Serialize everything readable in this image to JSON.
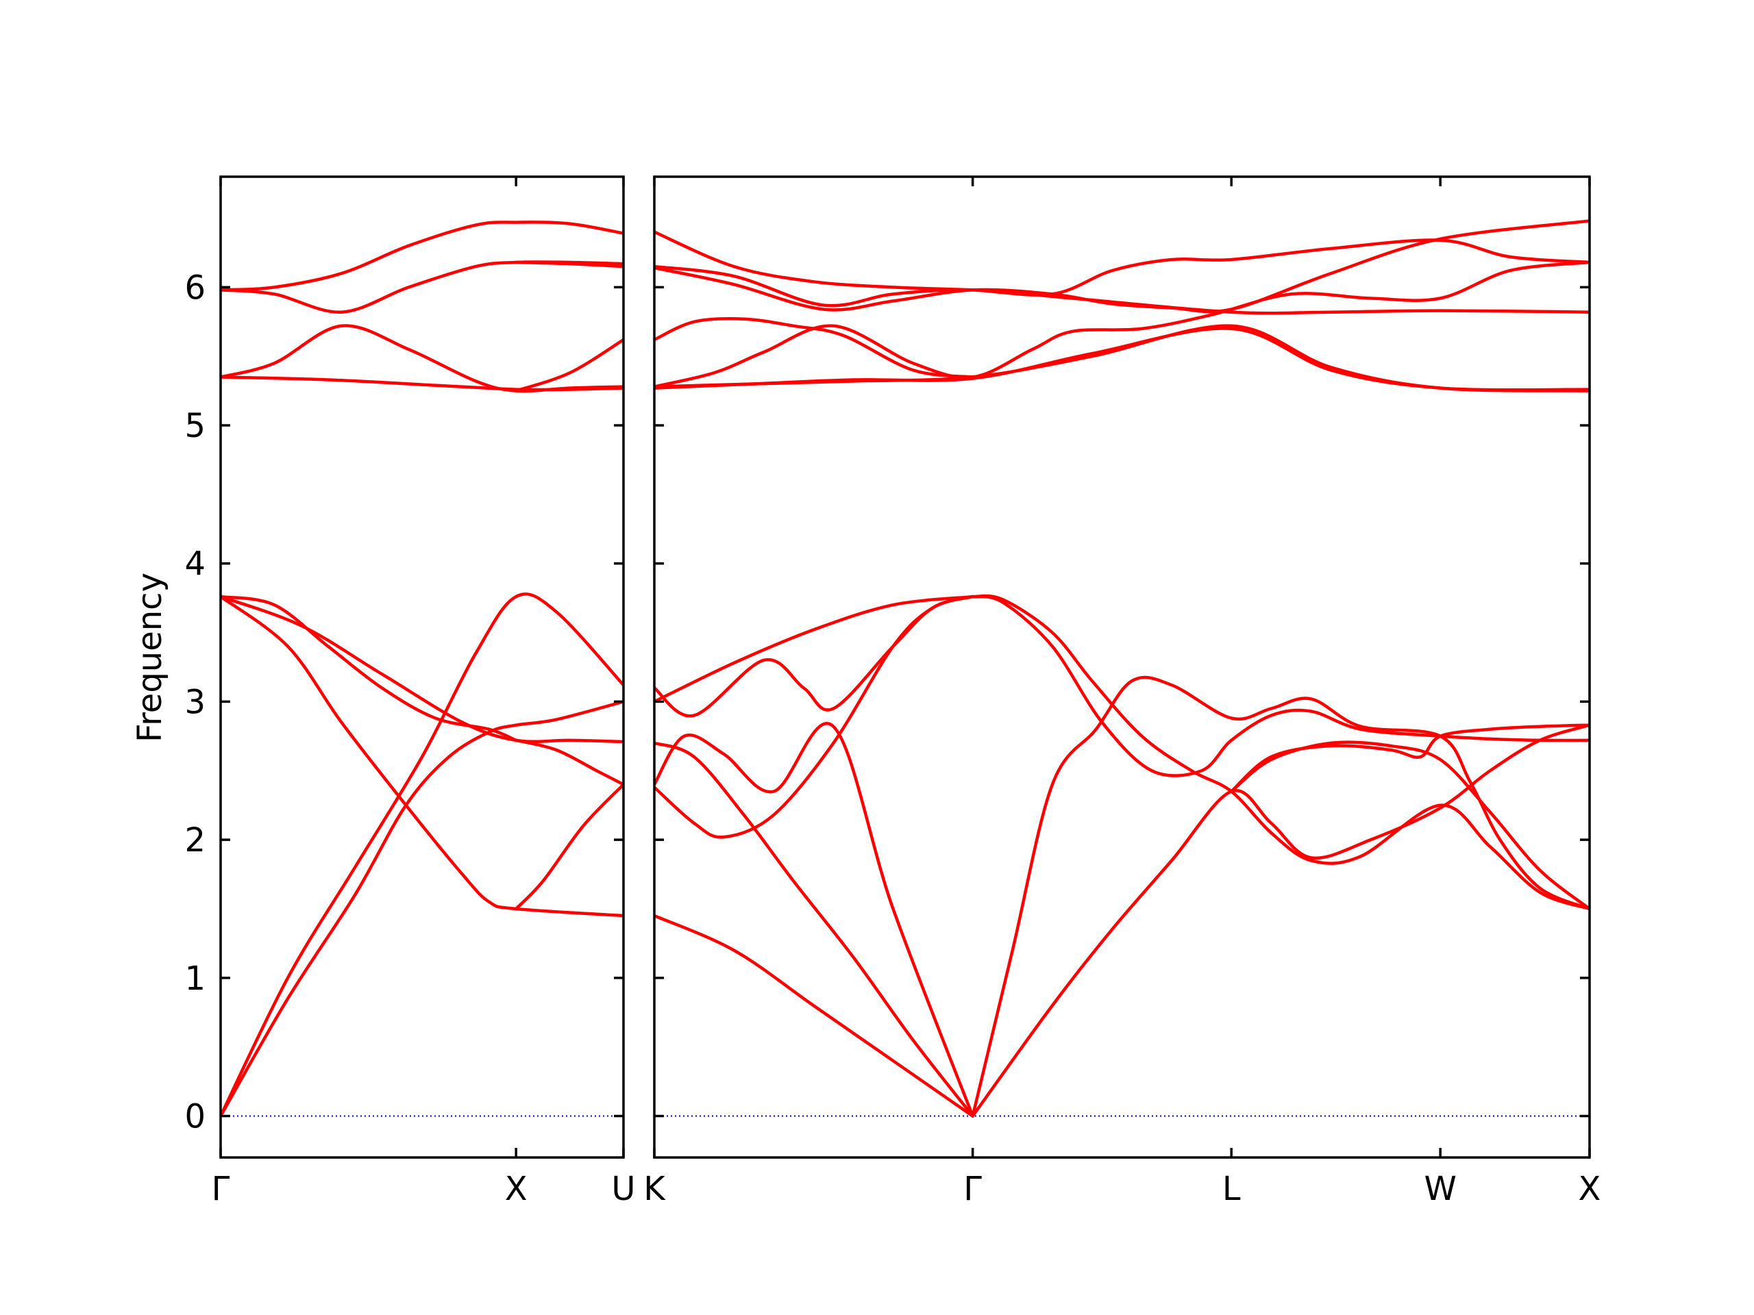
{
  "chart_data": {
    "type": "line",
    "title": "",
    "ylabel": "Frequency",
    "ylim": [
      -0.3,
      6.8
    ],
    "yticks": [
      0,
      1,
      2,
      3,
      4,
      5,
      6
    ],
    "line_color": "#ff0000",
    "zero_line_color": "#0000cc",
    "grid": false,
    "segments": [
      {
        "xlim": [
          0,
          1.5
        ],
        "ticks": [
          {
            "pos": 0,
            "label": "Γ"
          },
          {
            "pos": 1.1,
            "label": "X"
          },
          {
            "pos": 1.5,
            "label": "U"
          }
        ],
        "bands": [
          {
            "x": [
              0,
              0.25,
              0.5,
              0.75,
              0.95,
              1.1,
              1.25,
              1.5
            ],
            "y": [
              0,
              1.0,
              1.8,
              2.6,
              3.35,
              3.76,
              3.65,
              3.12
            ]
          },
          {
            "x": [
              0,
              0.25,
              0.5,
              0.69,
              0.85,
              1.0,
              1.1,
              1.25,
              1.5
            ],
            "y": [
              0,
              0.85,
              1.6,
              2.25,
              2.6,
              2.78,
              2.83,
              2.87,
              3.0
            ]
          },
          {
            "x": [
              0,
              0.25,
              0.45,
              0.69,
              0.9,
              1.0,
              1.1,
              1.5
            ],
            "y": [
              3.76,
              3.4,
              2.85,
              2.25,
              1.75,
              1.55,
              1.5,
              1.45
            ]
          },
          {
            "x": [
              0,
              0.3,
              0.6,
              0.9,
              1.1,
              1.3,
              1.5
            ],
            "y": [
              3.76,
              3.55,
              3.2,
              2.85,
              2.72,
              2.72,
              2.71
            ]
          },
          {
            "x": [
              0,
              0.2,
              0.4,
              0.6,
              0.8,
              1.0,
              1.1
            ],
            "y": [
              3.76,
              3.7,
              3.4,
              3.1,
              2.88,
              2.8,
              2.72
            ]
          },
          {
            "x": [
              1.1,
              1.2,
              1.35,
              1.5
            ],
            "y": [
              1.5,
              1.7,
              2.1,
              2.4
            ]
          },
          {
            "x": [
              1.1,
              1.25,
              1.4,
              1.5
            ],
            "y": [
              2.72,
              2.65,
              2.5,
              2.4
            ]
          },
          {
            "x": [
              0,
              0.4,
              0.8,
              1.1,
              1.3,
              1.5
            ],
            "y": [
              5.35,
              5.33,
              5.29,
              5.26,
              5.26,
              5.27
            ]
          },
          {
            "x": [
              0,
              0.2,
              0.45,
              0.7,
              0.95,
              1.1,
              1.3,
              1.5
            ],
            "y": [
              5.35,
              5.45,
              5.72,
              5.55,
              5.32,
              5.25,
              5.27,
              5.28
            ]
          },
          {
            "x": [
              1.1,
              1.3,
              1.5
            ],
            "y": [
              5.25,
              5.38,
              5.62
            ]
          },
          {
            "x": [
              0,
              0.2,
              0.45,
              0.7,
              0.95,
              1.1,
              1.3,
              1.5
            ],
            "y": [
              5.98,
              5.95,
              5.82,
              6.0,
              6.15,
              6.18,
              6.18,
              6.17
            ]
          },
          {
            "x": [
              0,
              0.2,
              0.45,
              0.7,
              0.95,
              1.1,
              1.3,
              1.5
            ],
            "y": [
              5.98,
              6.0,
              6.1,
              6.3,
              6.45,
              6.47,
              6.46,
              6.39
            ]
          },
          {
            "x": [
              1.1,
              1.3,
              1.5
            ],
            "y": [
              6.18,
              6.17,
              6.15
            ]
          }
        ]
      },
      {
        "xlim": [
          0,
          4.7
        ],
        "ticks": [
          {
            "pos": 0,
            "label": "K"
          },
          {
            "pos": 1.6,
            "label": "Γ"
          },
          {
            "pos": 2.9,
            "label": "L"
          },
          {
            "pos": 3.95,
            "label": "W"
          },
          {
            "pos": 4.7,
            "label": "X"
          }
        ],
        "bands": [
          {
            "x": [
              0,
              0.4,
              0.8,
              1.2,
              1.6
            ],
            "y": [
              1.45,
              1.2,
              0.8,
              0.4,
              0
            ]
          },
          {
            "x": [
              0,
              0.2,
              0.45,
              0.7,
              1.0,
              1.3,
              1.6
            ],
            "y": [
              2.7,
              2.6,
              2.18,
              1.7,
              1.15,
              0.55,
              0
            ]
          },
          {
            "x": [
              0,
              0.2,
              0.35,
              0.6,
              0.9,
              1.2,
              1.4,
              1.6
            ],
            "y": [
              2.38,
              2.12,
              2.02,
              2.18,
              2.7,
              3.4,
              3.68,
              3.76
            ]
          },
          {
            "x": [
              0,
              0.15,
              0.35,
              0.6,
              0.9,
              1.2,
              1.6
            ],
            "y": [
              2.4,
              2.75,
              2.62,
              2.35,
              2.82,
              1.5,
              0
            ]
          },
          {
            "x": [
              0,
              0.2,
              0.55,
              0.75,
              0.9,
              1.2,
              1.4,
              1.6
            ],
            "y": [
              3.1,
              2.9,
              3.3,
              3.1,
              2.95,
              3.4,
              3.68,
              3.76
            ]
          },
          {
            "x": [
              0,
              0.4,
              0.8,
              1.2,
              1.6
            ],
            "y": [
              3.0,
              3.28,
              3.52,
              3.7,
              3.76
            ]
          },
          {
            "x": [
              1.6,
              1.75,
              2.0,
              2.25,
              2.5,
              2.75,
              2.9,
              3.1,
              3.3,
              3.55,
              3.95,
              4.2,
              4.45,
              4.7
            ],
            "y": [
              3.76,
              3.72,
              3.4,
              2.85,
              2.5,
              2.5,
              2.72,
              2.9,
              2.93,
              2.8,
              2.75,
              2.73,
              2.72,
              2.72
            ]
          },
          {
            "x": [
              1.6,
              1.75,
              2.0,
              2.2,
              2.45,
              2.7,
              2.9,
              3.1,
              3.3,
              3.55,
              3.95,
              4.2,
              4.45,
              4.7
            ],
            "y": [
              3.76,
              3.74,
              3.5,
              3.15,
              2.75,
              2.5,
              2.35,
              2.05,
              1.85,
              1.88,
              2.25,
              1.95,
              1.62,
              1.5
            ]
          },
          {
            "x": [
              1.6,
              2.0,
              2.3,
              2.6,
              2.9,
              3.1,
              3.3,
              3.6,
              3.95,
              4.2,
              4.45,
              4.7
            ],
            "y": [
              0,
              0.8,
              1.35,
              1.85,
              2.35,
              2.12,
              1.87,
              2.0,
              2.23,
              2.5,
              2.72,
              2.83
            ]
          },
          {
            "x": [
              1.6,
              1.8,
              2.0,
              2.22,
              2.4,
              2.6,
              2.9,
              3.1,
              3.3,
              3.55,
              3.95,
              4.1,
              4.25,
              4.45,
              4.7
            ],
            "y": [
              0,
              1.2,
              2.4,
              2.8,
              3.15,
              3.12,
              2.88,
              2.95,
              3.02,
              2.82,
              2.75,
              2.42,
              2.0,
              1.65,
              1.5
            ]
          },
          {
            "x": [
              2.9,
              3.1,
              3.4,
              3.7,
              3.85,
              3.95,
              4.2,
              4.45,
              4.7
            ],
            "y": [
              2.35,
              2.6,
              2.68,
              2.65,
              2.6,
              2.75,
              2.8,
              2.82,
              2.83
            ]
          },
          {
            "x": [
              2.9,
              3.1,
              3.4,
              3.7,
              3.95,
              4.2,
              4.45,
              4.7
            ],
            "y": [
              2.35,
              2.58,
              2.7,
              2.68,
              2.58,
              2.2,
              1.78,
              1.5
            ]
          },
          {
            "x": [
              0,
              0.5,
              1.0,
              1.6,
              2.2,
              2.9,
              3.4,
              3.95,
              4.7
            ],
            "y": [
              5.28,
              5.3,
              5.32,
              5.35,
              5.5,
              5.72,
              5.42,
              5.27,
              5.25
            ]
          },
          {
            "x": [
              0,
              0.5,
              1.0,
              1.6,
              2.2,
              2.9,
              3.4,
              3.95,
              4.7
            ],
            "y": [
              5.27,
              5.3,
              5.33,
              5.34,
              5.52,
              5.7,
              5.4,
              5.27,
              5.26
            ]
          },
          {
            "x": [
              0,
              0.3,
              0.55,
              0.9,
              1.3,
              1.6,
              1.9,
              2.1,
              2.45,
              2.8,
              3.2,
              3.6,
              3.95,
              4.3,
              4.7
            ],
            "y": [
              5.28,
              5.38,
              5.53,
              5.72,
              5.45,
              5.35,
              5.55,
              5.68,
              5.7,
              5.8,
              5.95,
              5.92,
              5.92,
              6.12,
              6.18
            ]
          },
          {
            "x": [
              0,
              0.2,
              0.45,
              0.7,
              0.95,
              1.3,
              1.6
            ],
            "y": [
              5.62,
              5.75,
              5.77,
              5.72,
              5.65,
              5.4,
              5.35
            ]
          },
          {
            "x": [
              0,
              0.4,
              0.85,
              1.2,
              1.6,
              2.1,
              2.9,
              3.4,
              3.95,
              4.7
            ],
            "y": [
              6.15,
              6.08,
              5.87,
              5.95,
              5.98,
              5.92,
              5.82,
              5.82,
              5.83,
              5.82
            ]
          },
          {
            "x": [
              0,
              0.4,
              0.85,
              1.2,
              1.6,
              2.0,
              2.3,
              2.6,
              2.9,
              3.4,
              3.95,
              4.7
            ],
            "y": [
              6.14,
              6.02,
              5.84,
              5.9,
              5.98,
              5.95,
              5.88,
              5.85,
              5.84,
              6.1,
              6.35,
              6.48
            ]
          },
          {
            "x": [
              0,
              0.4,
              0.8,
              1.2,
              1.6,
              2.0,
              2.3,
              2.6,
              2.9,
              3.4,
              3.95,
              4.3,
              4.7
            ],
            "y": [
              6.4,
              6.15,
              6.04,
              6.0,
              5.98,
              5.95,
              6.12,
              6.2,
              6.2,
              6.28,
              6.34,
              6.22,
              6.18
            ]
          }
        ]
      }
    ]
  }
}
